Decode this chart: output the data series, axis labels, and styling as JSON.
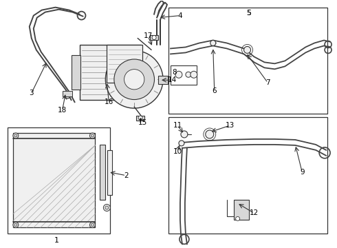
{
  "bg_color": "#ffffff",
  "line_color": "#333333",
  "label_color": "#000000",
  "fig_width": 4.9,
  "fig_height": 3.6,
  "dpi": 100,
  "hose_color": "#444444",
  "component_color": "#555555",
  "fill_light": "#f0f0f0",
  "fill_mid": "#d8d8d8"
}
